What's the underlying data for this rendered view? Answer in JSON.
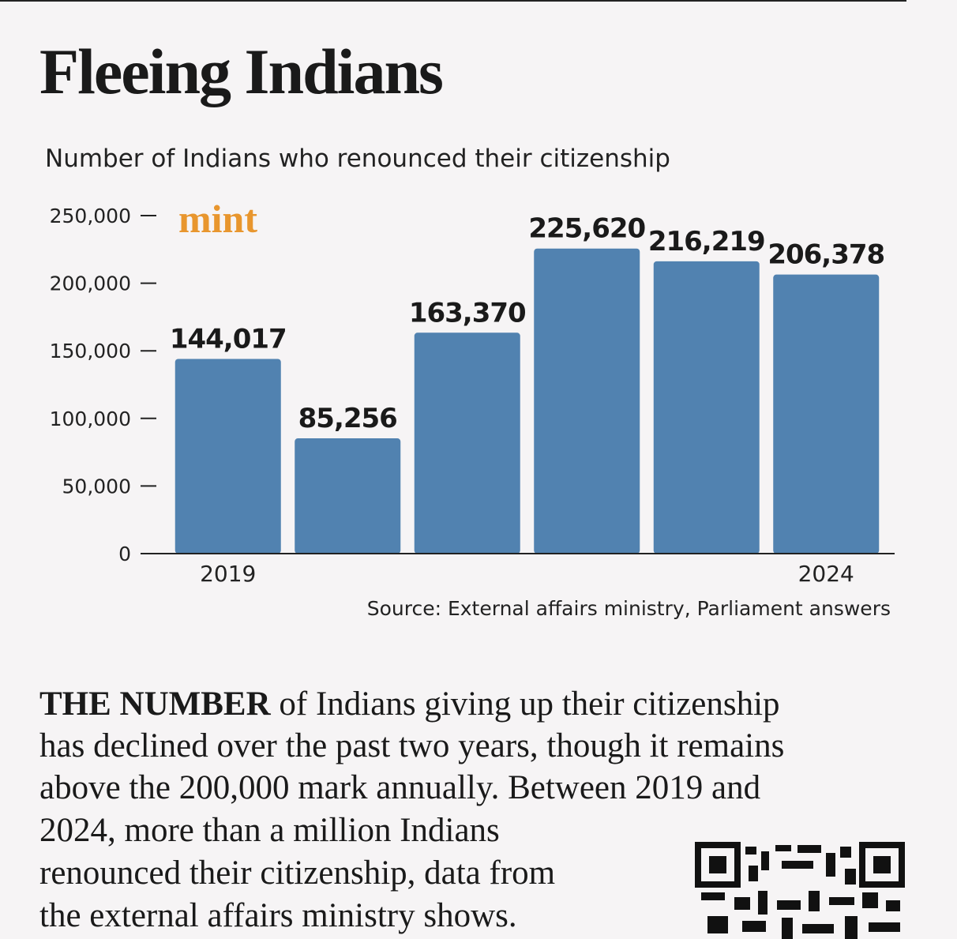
{
  "title": "Fleeing Indians",
  "chart_data": {
    "type": "bar",
    "subtitle": "Number of Indians who renounced their citizenship",
    "logo": "mint",
    "categories": [
      "2019",
      null,
      null,
      null,
      null,
      "2024"
    ],
    "values": [
      144017,
      85256,
      163370,
      225620,
      216219,
      206378
    ],
    "value_labels": [
      "144,017",
      "85,256",
      "163,370",
      "225,620",
      "216,219",
      "206,378"
    ],
    "color": "#5182b0",
    "ylim": [
      0,
      250000
    ],
    "yticks": [
      0,
      {
        "value": 50000,
        "label": "50,000"
      },
      {
        "value": 100000,
        "label": "100,000"
      },
      {
        "value": 150000,
        "label": "150,000"
      },
      {
        "value": 200000,
        "label": "200,000"
      },
      {
        "value": 250000,
        "label": "250,000"
      }
    ],
    "source": "Source: External affairs ministry, Parliament answers"
  },
  "body": {
    "lead": "THE NUMBER",
    "lines": [
      "of Indians giving up their citizenship",
      "has declined over the past two years, though it remains",
      "above the 200,000 mark annually. Between 2019 and",
      "2024, more than a million Indians",
      "renounced their citizenship, data from",
      "the external affairs ministry shows."
    ]
  }
}
